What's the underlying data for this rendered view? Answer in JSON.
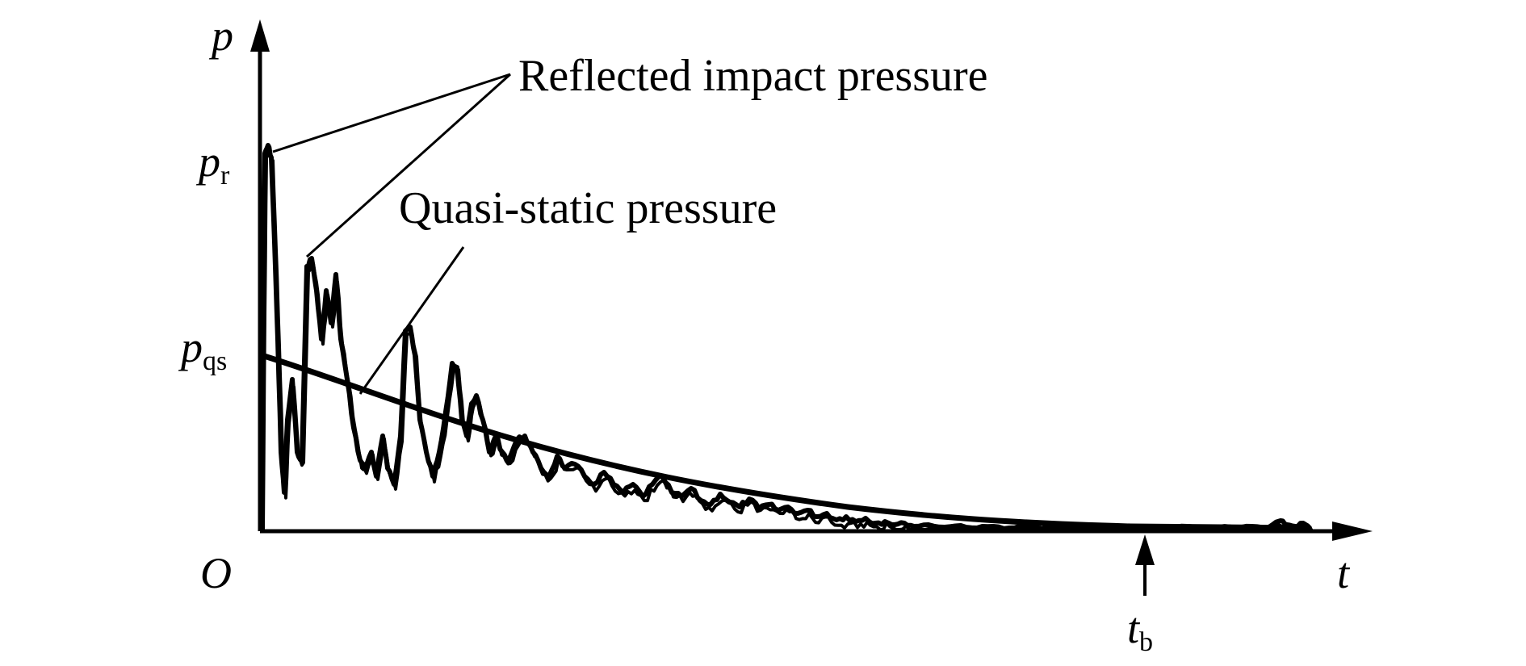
{
  "axes": {
    "y_symbol": "p",
    "x_symbol": "t",
    "origin_label": "O"
  },
  "ticks": {
    "pr": {
      "main": "p",
      "sub": "r"
    },
    "pqs": {
      "main": "p",
      "sub": "qs"
    },
    "tb": {
      "main": "t",
      "sub": "b"
    }
  },
  "annotations": {
    "reflected": "Reflected impact pressure",
    "quasi_static": "Quasi-static pressure"
  },
  "colors": {
    "ink": "#000000",
    "background": "#ffffff"
  }
}
